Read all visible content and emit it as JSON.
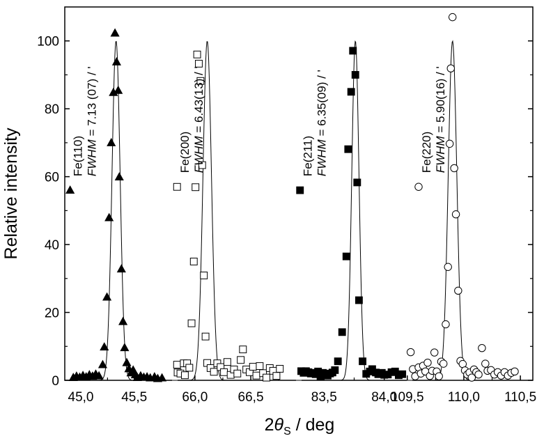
{
  "chart_data": {
    "type": "scatter",
    "xlabel": {
      "prefix": "2",
      "theta": "θ",
      "sub": "S",
      "unit": " / deg"
    },
    "ylabel": "Relative intensity",
    "ylim": [
      0,
      110
    ],
    "yticks": [
      0,
      20,
      40,
      60,
      80,
      100
    ],
    "grid": false,
    "legend": "inline markers next to annotations",
    "panels": [
      {
        "name": "Fe(110)",
        "marker": "filled-triangle",
        "xlim": [
          44.85,
          45.88
        ],
        "xticks": [
          45.0,
          45.5
        ],
        "xtick_labels": [
          "45,0",
          "45,5"
        ],
        "annotation": {
          "line1": "Fe(110)",
          "fwhm_label": "FWHM",
          "fwhm_value": " = 7.13 (07) / '"
        },
        "fit": {
          "center": 45.33,
          "height": 100,
          "sigma": 0.038
        },
        "points": [
          [
            44.93,
            0.8
          ],
          [
            44.96,
            1.2
          ],
          [
            44.99,
            0.9
          ],
          [
            45.02,
            1.4
          ],
          [
            45.05,
            1.0
          ],
          [
            45.08,
            1.6
          ],
          [
            45.11,
            1.2
          ],
          [
            45.14,
            1.8
          ],
          [
            45.17,
            1.3
          ],
          [
            45.205,
            4.6
          ],
          [
            45.22,
            9.8
          ],
          [
            45.245,
            24.5
          ],
          [
            45.265,
            47.9
          ],
          [
            45.285,
            70.0
          ],
          [
            45.305,
            84.8
          ],
          [
            45.32,
            102.3
          ],
          [
            45.335,
            93.8
          ],
          [
            45.35,
            85.4
          ],
          [
            45.36,
            59.9
          ],
          [
            45.38,
            32.8
          ],
          [
            45.395,
            17.3
          ],
          [
            45.41,
            9.6
          ],
          [
            45.43,
            5.2
          ],
          [
            45.45,
            3.4
          ],
          [
            45.47,
            2.2
          ],
          [
            45.49,
            3.0
          ],
          [
            45.51,
            1.6
          ],
          [
            45.53,
            0.8
          ],
          [
            45.56,
            1.3
          ],
          [
            45.59,
            0.9
          ],
          [
            45.62,
            1.0
          ],
          [
            45.65,
            0.7
          ],
          [
            45.69,
            1.0
          ],
          [
            45.72,
            0.5
          ],
          [
            45.76,
            0.7
          ]
        ]
      },
      {
        "name": "Fe(200)",
        "marker": "open-square",
        "xlim": [
          65.82,
          66.93
        ],
        "xticks": [
          66.0,
          66.5
        ],
        "xtick_labels": [
          "66,0",
          "66,5"
        ],
        "annotation": {
          "line1": "Fe(200)",
          "fwhm_label": "FWHM",
          "fwhm_value": " = 6.43(13) / '"
        },
        "fit": {
          "center": 66.11,
          "height": 100,
          "sigma": 0.038
        },
        "points": [
          [
            65.84,
            4.6
          ],
          [
            65.845,
            2.3
          ],
          [
            65.87,
            2.0
          ],
          [
            65.9,
            5.0
          ],
          [
            65.91,
            1.5
          ],
          [
            65.93,
            5.0
          ],
          [
            65.95,
            3.7
          ],
          [
            65.97,
            16.8
          ],
          [
            65.99,
            35.0
          ],
          [
            66.005,
            56.9
          ],
          [
            66.02,
            96.0
          ],
          [
            66.035,
            93.3
          ],
          [
            66.05,
            88.2
          ],
          [
            66.065,
            63.4
          ],
          [
            66.08,
            30.9
          ],
          [
            66.095,
            12.9
          ],
          [
            66.11,
            5.1
          ],
          [
            66.14,
            3.6
          ],
          [
            66.17,
            2.5
          ],
          [
            66.2,
            5.0
          ],
          [
            66.23,
            3.9
          ],
          [
            66.26,
            2.4
          ],
          [
            66.29,
            5.4
          ],
          [
            66.32,
            1.6
          ],
          [
            66.35,
            3.2
          ],
          [
            66.38,
            2.0
          ],
          [
            66.41,
            6.0
          ],
          [
            66.43,
            9.1
          ],
          [
            66.46,
            3.2
          ],
          [
            66.49,
            2.4
          ],
          [
            66.52,
            4.0
          ],
          [
            66.55,
            1.4
          ],
          [
            66.58,
            4.2
          ],
          [
            66.61,
            2.1
          ],
          [
            66.64,
            0.8
          ],
          [
            66.67,
            3.6
          ],
          [
            66.7,
            2.8
          ],
          [
            66.73,
            1.3
          ],
          [
            66.76,
            3.4
          ]
        ]
      },
      {
        "name": "Fe(211)",
        "marker": "filled-square",
        "xlim": [
          83.29,
          84.21
        ],
        "xticks": [
          83.5,
          84.0
        ],
        "xtick_labels": [
          "83,5",
          "84,0"
        ],
        "annotation": {
          "line1": "Fe(211)",
          "fwhm_label": "FWHM",
          "fwhm_value": " = 6.35(09) / '"
        },
        "fit": {
          "center": 83.76,
          "height": 100,
          "sigma": 0.03
        },
        "points": [
          [
            83.31,
            2.7
          ],
          [
            83.33,
            2.2
          ],
          [
            83.35,
            2.7
          ],
          [
            83.37,
            2.4
          ],
          [
            83.39,
            2.0
          ],
          [
            83.41,
            2.2
          ],
          [
            83.43,
            1.8
          ],
          [
            83.45,
            2.6
          ],
          [
            83.47,
            1.2
          ],
          [
            83.49,
            2.2
          ],
          [
            83.51,
            1.8
          ],
          [
            83.53,
            1.4
          ],
          [
            83.55,
            2.0
          ],
          [
            83.57,
            2.3
          ],
          [
            83.59,
            3.0
          ],
          [
            83.615,
            5.6
          ],
          [
            83.65,
            14.2
          ],
          [
            83.685,
            36.5
          ],
          [
            83.7,
            68.1
          ],
          [
            83.725,
            85.0
          ],
          [
            83.74,
            97.1
          ],
          [
            83.76,
            90.0
          ],
          [
            83.775,
            58.3
          ],
          [
            83.79,
            23.6
          ],
          [
            83.82,
            5.6
          ],
          [
            83.85,
            1.9
          ],
          [
            83.88,
            2.6
          ],
          [
            83.9,
            3.3
          ],
          [
            83.93,
            2.3
          ],
          [
            83.95,
            1.8
          ],
          [
            83.98,
            2.2
          ],
          [
            84.0,
            1.6
          ],
          [
            84.03,
            1.7
          ],
          [
            84.06,
            2.4
          ],
          [
            84.09,
            2.6
          ],
          [
            84.12,
            1.5
          ],
          [
            84.15,
            1.8
          ]
        ]
      },
      {
        "name": "Fe(220)",
        "marker": "open-circle",
        "xlim": [
          109.52,
          110.61
        ],
        "xticks": [
          109.5,
          110.0,
          110.5
        ],
        "xtick_labels": [
          "109,5",
          "110,0",
          "110,5"
        ],
        "annotation": {
          "line1": "Fe(220)",
          "fwhm_label": "FWHM",
          "fwhm_value": " = 5.90(16) / '"
        },
        "fit": {
          "center": 109.9,
          "height": 100,
          "sigma": 0.038
        },
        "points": [
          [
            109.53,
            8.3
          ],
          [
            109.55,
            3.3
          ],
          [
            109.57,
            1.2
          ],
          [
            109.6,
            3.8
          ],
          [
            109.62,
            2.0
          ],
          [
            109.64,
            4.3
          ],
          [
            109.66,
            2.6
          ],
          [
            109.68,
            5.2
          ],
          [
            109.7,
            1.3
          ],
          [
            109.72,
            2.8
          ],
          [
            109.74,
            8.2
          ],
          [
            109.76,
            2.6
          ],
          [
            109.78,
            1.2
          ],
          [
            109.8,
            5.5
          ],
          [
            109.82,
            4.9
          ],
          [
            109.84,
            16.5
          ],
          [
            109.86,
            33.4
          ],
          [
            109.875,
            69.7
          ],
          [
            109.885,
            91.9
          ],
          [
            109.9,
            107.0
          ],
          [
            109.915,
            62.5
          ],
          [
            109.93,
            48.9
          ],
          [
            109.95,
            26.4
          ],
          [
            109.97,
            5.7
          ],
          [
            109.99,
            4.8
          ],
          [
            110.01,
            2.9
          ],
          [
            110.03,
            1.7
          ],
          [
            110.05,
            2.3
          ],
          [
            110.07,
            0.8
          ],
          [
            110.09,
            3.2
          ],
          [
            110.11,
            2.4
          ],
          [
            110.13,
            1.7
          ],
          [
            110.16,
            9.5
          ],
          [
            110.19,
            4.9
          ],
          [
            110.21,
            2.8
          ],
          [
            110.24,
            3.0
          ],
          [
            110.27,
            1.7
          ],
          [
            110.3,
            2.4
          ],
          [
            110.33,
            1.4
          ],
          [
            110.36,
            2.4
          ],
          [
            110.39,
            1.4
          ],
          [
            110.42,
            2.2
          ],
          [
            110.45,
            2.6
          ]
        ]
      }
    ],
    "legend_markers": [
      {
        "panel": 0,
        "x": 44.9,
        "y": 56
      },
      {
        "panel": 1,
        "x": 65.84,
        "y": 57
      },
      {
        "panel": 2,
        "x": 83.3,
        "y": 56
      },
      {
        "panel": 3,
        "x": 109.6,
        "y": 57
      }
    ]
  }
}
